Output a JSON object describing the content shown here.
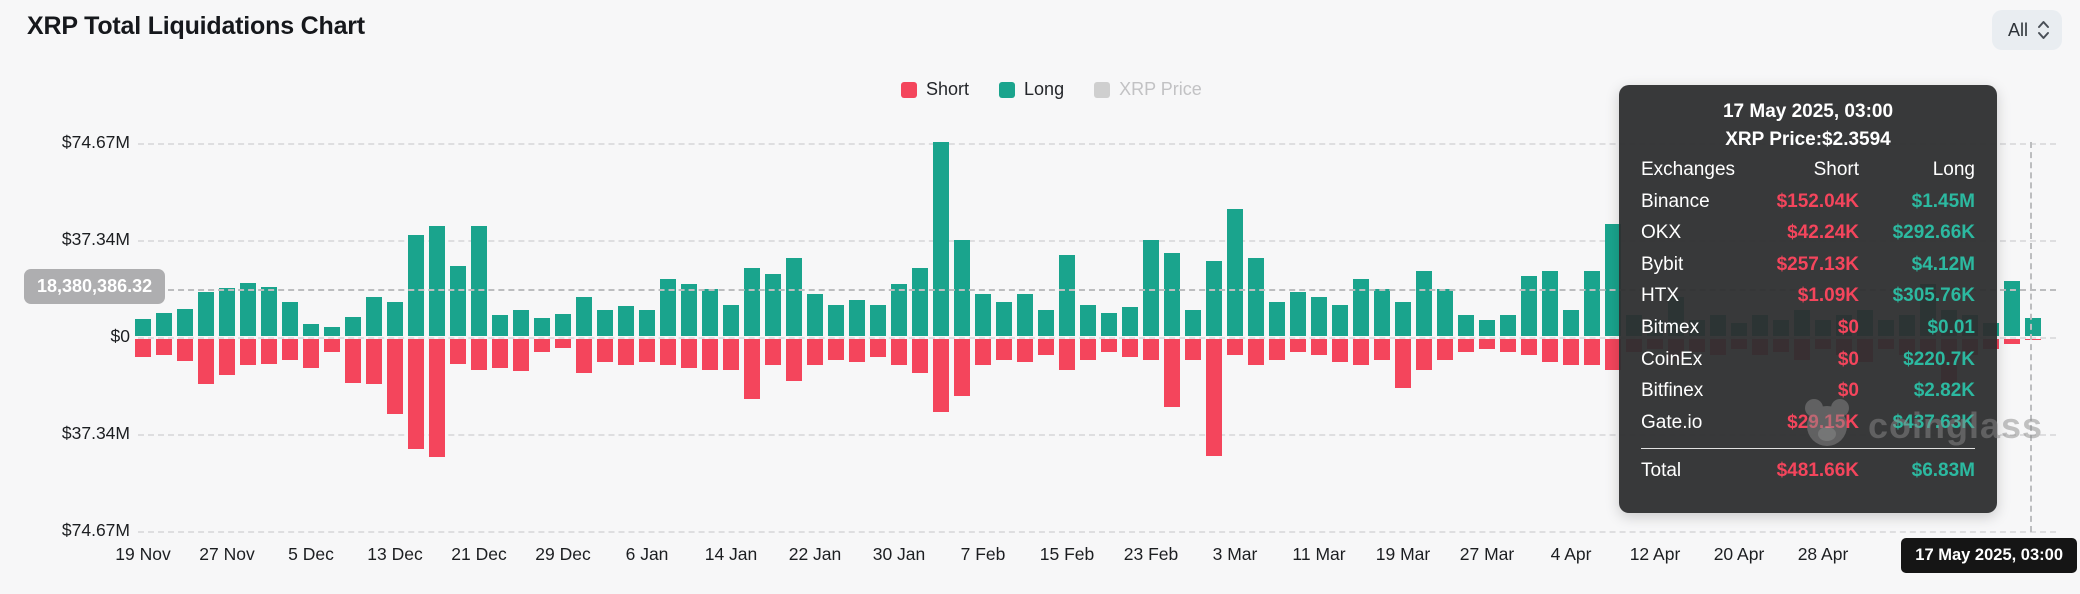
{
  "header": {
    "title": "XRP Total Liquidations Chart",
    "range_selector": {
      "value": "All"
    }
  },
  "legend": [
    {
      "label": "Short",
      "color": "#f4455c",
      "active": true
    },
    {
      "label": "Long",
      "color": "#1aa48d",
      "active": true
    },
    {
      "label": "XRP Price",
      "color": "#cfcfcf",
      "active": false
    }
  ],
  "crosshair": {
    "y_value_label": "18,380,386.32",
    "x_value_label": "17 May 2025, 03:00"
  },
  "tooltip": {
    "date": "17 May 2025, 03:00",
    "price_line": "XRP Price:$2.3594",
    "columns": [
      "Exchanges",
      "Short",
      "Long"
    ],
    "rows": [
      [
        "Binance",
        "$152.04K",
        "$1.45M"
      ],
      [
        "OKX",
        "$42.24K",
        "$292.66K"
      ],
      [
        "Bybit",
        "$257.13K",
        "$4.12M"
      ],
      [
        "HTX",
        "$1.09K",
        "$305.76K"
      ],
      [
        "Bitmex",
        "$0",
        "$0.01"
      ],
      [
        "CoinEx",
        "$0",
        "$220.7K"
      ],
      [
        "Bitfinex",
        "$0",
        "$2.82K"
      ],
      [
        "Gate.io",
        "$29.15K",
        "$437.63K"
      ]
    ],
    "total": [
      "Total",
      "$481.66K",
      "$6.83M"
    ]
  },
  "watermark": {
    "text": "coinglass"
  },
  "chart_data": {
    "type": "bar",
    "title": "XRP Total Liquidations Chart",
    "y_axis_tick_labels": [
      "$74.67M",
      "$37.34M",
      "$0",
      "$37.34M",
      "$74.67M"
    ],
    "y_gridline_values_m": [
      74.67,
      37.34,
      0,
      -37.34,
      -74.67
    ],
    "x_axis_tick_labels": [
      "19 Nov",
      "27 Nov",
      "5 Dec",
      "13 Dec",
      "21 Dec",
      "29 Dec",
      "6 Jan",
      "14 Jan",
      "22 Jan",
      "30 Jan",
      "7 Feb",
      "15 Feb",
      "23 Feb",
      "3 Mar",
      "11 Mar",
      "19 Mar",
      "27 Mar",
      "4 Apr",
      "12 Apr",
      "20 Apr",
      "28 Apr"
    ],
    "x_hover_label": "17 May 2025, 03:00",
    "grid": true,
    "legend_position": "top-center",
    "note": "Long values plot upward, Short values plot downward from zero; amounts estimated in USD millions",
    "series": [
      {
        "name": "Long",
        "color": "#1aa48d",
        "direction": "up",
        "values_m": [
          6.5,
          9,
          10.5,
          17,
          18.5,
          20.5,
          19,
          13,
          4.5,
          3.5,
          7.5,
          15,
          13,
          39,
          42.5,
          27,
          42.5,
          8,
          10,
          7,
          8.5,
          15,
          10,
          11.5,
          10,
          22,
          20,
          18,
          12,
          26,
          24,
          30,
          16,
          12,
          14,
          12,
          20,
          26,
          74.6,
          37,
          16,
          13,
          16,
          10,
          31,
          12,
          9,
          11,
          37,
          32,
          10,
          29,
          49,
          30,
          13,
          17,
          15,
          12,
          22,
          18,
          13,
          25,
          18,
          8,
          6,
          8,
          23,
          25,
          10,
          25,
          43,
          8,
          6,
          15,
          6,
          8,
          5,
          8,
          6,
          10,
          6,
          8,
          10,
          6,
          8,
          20,
          10,
          8,
          5,
          21,
          6.8
        ]
      },
      {
        "name": "Short",
        "color": "#f4455c",
        "direction": "down",
        "values_m": [
          7,
          6,
          8.5,
          17.5,
          14,
          10,
          9.5,
          8,
          11,
          5,
          17,
          17.5,
          29,
          42.5,
          45.5,
          9.5,
          12,
          11,
          12.5,
          5,
          3.5,
          13,
          9,
          10,
          9,
          10,
          11,
          12,
          12,
          23,
          10,
          16,
          10,
          8,
          9,
          7,
          10,
          13,
          28,
          22,
          10,
          8,
          9,
          6,
          12,
          8,
          5,
          7,
          8,
          26,
          8,
          45,
          6,
          10,
          8,
          5,
          6,
          9,
          10,
          8,
          19,
          12,
          8,
          5,
          4,
          5,
          6,
          9,
          10,
          10,
          12,
          5,
          4,
          8,
          5,
          6,
          4,
          6,
          5,
          8,
          4,
          6,
          9,
          4,
          6,
          10,
          18,
          6,
          4,
          2,
          0.5
        ]
      }
    ],
    "hovered_bar": {
      "x_label": "17 May 2025, 03:00",
      "long": "$6.83M",
      "short": "$481.66K"
    }
  }
}
